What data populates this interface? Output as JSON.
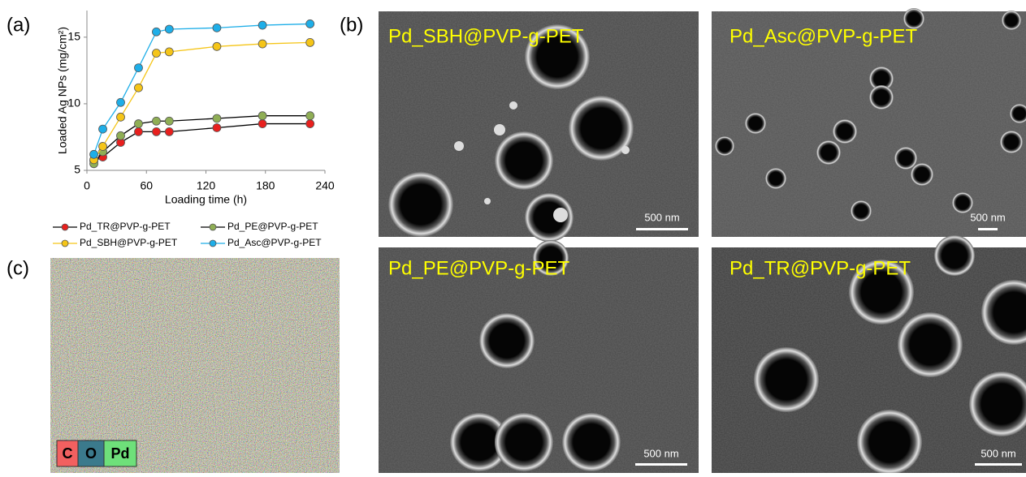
{
  "figure": {
    "panel_labels": [
      "(a)",
      "(b)",
      "(c)"
    ]
  },
  "chart_data": {
    "type": "line",
    "xlabel": "Loading time (h)",
    "ylabel": "Loaded Ag NPs (mg/cm²)",
    "x": [
      7,
      16,
      34,
      52,
      70,
      83,
      131,
      177,
      225
    ],
    "xlim": [
      0,
      240
    ],
    "xticks": [
      0,
      60,
      120,
      180,
      240
    ],
    "ylim": [
      5,
      17
    ],
    "yticks": [
      5,
      10,
      15
    ],
    "series": [
      {
        "name": "Pd_TR@PVP-g-PET",
        "color": "#e8201e",
        "line_color": "#000000",
        "values": [
          5.7,
          6.0,
          7.1,
          7.9,
          7.9,
          7.9,
          8.2,
          8.5,
          8.5
        ]
      },
      {
        "name": "Pd_PE@PVP-g-PET",
        "color": "#8fae55",
        "line_color": "#000000",
        "values": [
          5.5,
          6.4,
          7.6,
          8.5,
          8.7,
          8.7,
          8.9,
          9.1,
          9.1
        ]
      },
      {
        "name": "Pd_SBH@PVP-g-PET",
        "color": "#f5c518",
        "line_color": "#f5c518",
        "values": [
          5.8,
          6.8,
          9.0,
          11.2,
          13.8,
          13.9,
          14.3,
          14.5,
          14.6
        ]
      },
      {
        "name": "Pd_Asc@PVP-g-PET",
        "color": "#1eaee8",
        "line_color": "#1eaee8",
        "values": [
          6.2,
          8.1,
          10.1,
          12.7,
          15.4,
          15.6,
          15.7,
          15.9,
          16.0
        ]
      }
    ]
  },
  "sem_images": [
    {
      "label": "Pd_SBH@PVP-g-PET",
      "scale_bar": "500 nm"
    },
    {
      "label": "Pd_Asc@PVP-g-PET",
      "scale_bar": "500 nm"
    },
    {
      "label": "Pd_PE@PVP-g-PET",
      "scale_bar": "500 nm"
    },
    {
      "label": "Pd_TR@PVP-g-PET",
      "scale_bar": "500 nm"
    }
  ],
  "eds_map": {
    "elements": [
      "C",
      "O",
      "Pd"
    ]
  }
}
